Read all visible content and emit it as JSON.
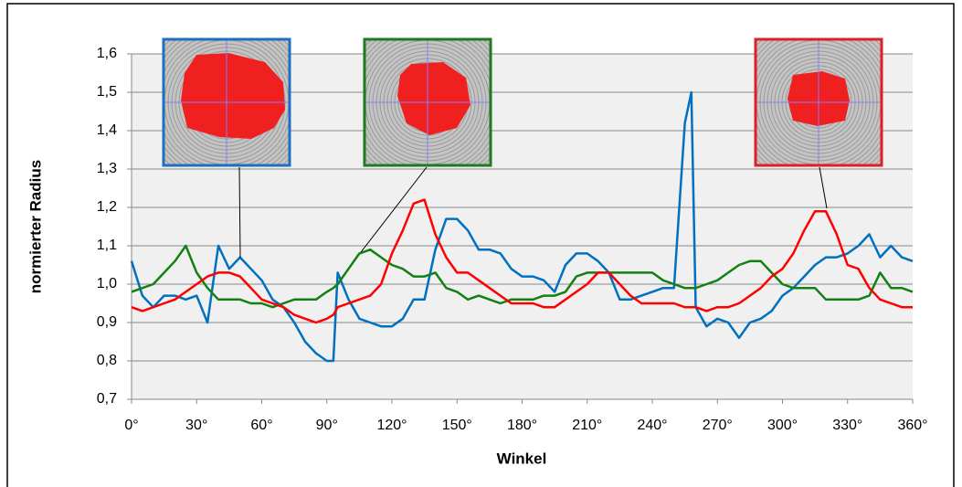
{
  "chart_data": {
    "type": "line",
    "xlabel": "Winkel",
    "ylabel": "normierter Radius",
    "x": [
      0,
      5,
      10,
      15,
      20,
      25,
      30,
      35,
      40,
      45,
      50,
      55,
      60,
      65,
      70,
      75,
      80,
      85,
      90,
      93,
      95,
      100,
      105,
      110,
      115,
      120,
      125,
      130,
      135,
      140,
      145,
      150,
      155,
      160,
      165,
      170,
      175,
      180,
      185,
      190,
      195,
      200,
      205,
      210,
      215,
      220,
      225,
      230,
      235,
      240,
      245,
      250,
      255,
      258,
      260,
      265,
      270,
      275,
      280,
      285,
      290,
      295,
      300,
      305,
      310,
      315,
      320,
      325,
      330,
      335,
      340,
      345,
      350,
      355,
      360
    ],
    "series": [
      {
        "color": "#0070c0",
        "values": [
          1.06,
          0.97,
          0.94,
          0.97,
          0.97,
          0.96,
          0.97,
          0.9,
          1.1,
          1.04,
          1.07,
          1.04,
          1.01,
          0.96,
          0.94,
          0.9,
          0.85,
          0.82,
          0.8,
          0.8,
          1.03,
          0.96,
          0.91,
          0.9,
          0.89,
          0.89,
          0.91,
          0.96,
          0.96,
          1.09,
          1.17,
          1.17,
          1.14,
          1.09,
          1.09,
          1.08,
          1.04,
          1.02,
          1.02,
          1.01,
          0.98,
          1.05,
          1.08,
          1.08,
          1.06,
          1.03,
          0.96,
          0.96,
          0.97,
          0.98,
          0.99,
          0.99,
          1.42,
          1.5,
          0.94,
          0.89,
          0.91,
          0.9,
          0.86,
          0.9,
          0.91,
          0.93,
          0.97,
          0.99,
          1.02,
          1.05,
          1.07,
          1.07,
          1.08,
          1.1,
          1.13,
          1.07,
          1.1,
          1.07,
          1.06
        ]
      },
      {
        "color": "#138013",
        "values": [
          0.98,
          0.99,
          1.0,
          1.03,
          1.06,
          1.1,
          1.03,
          0.99,
          0.96,
          0.96,
          0.96,
          0.95,
          0.95,
          0.94,
          0.95,
          0.96,
          0.96,
          0.96,
          0.98,
          0.99,
          1.0,
          1.04,
          1.08,
          1.09,
          1.07,
          1.05,
          1.04,
          1.02,
          1.02,
          1.03,
          0.99,
          0.98,
          0.96,
          0.97,
          0.96,
          0.95,
          0.96,
          0.96,
          0.96,
          0.97,
          0.97,
          0.98,
          1.02,
          1.03,
          1.03,
          1.03,
          1.03,
          1.03,
          1.03,
          1.03,
          1.01,
          1.0,
          0.99,
          0.99,
          0.99,
          1.0,
          1.01,
          1.03,
          1.05,
          1.06,
          1.06,
          1.03,
          1.0,
          0.99,
          0.99,
          0.99,
          0.96,
          0.96,
          0.96,
          0.96,
          0.97,
          1.03,
          0.99,
          0.99,
          0.98
        ]
      },
      {
        "color": "#ff0000",
        "values": [
          0.94,
          0.93,
          0.94,
          0.95,
          0.96,
          0.98,
          1.0,
          1.02,
          1.03,
          1.03,
          1.02,
          0.99,
          0.96,
          0.95,
          0.94,
          0.92,
          0.91,
          0.9,
          0.91,
          0.92,
          0.94,
          0.95,
          0.96,
          0.97,
          1.0,
          1.08,
          1.14,
          1.21,
          1.22,
          1.13,
          1.07,
          1.03,
          1.03,
          1.01,
          0.99,
          0.97,
          0.95,
          0.95,
          0.95,
          0.94,
          0.94,
          0.96,
          0.98,
          1.0,
          1.03,
          1.03,
          1.0,
          0.97,
          0.95,
          0.95,
          0.95,
          0.95,
          0.94,
          0.94,
          0.94,
          0.93,
          0.94,
          0.94,
          0.95,
          0.97,
          0.99,
          1.02,
          1.04,
          1.08,
          1.14,
          1.19,
          1.19,
          1.13,
          1.05,
          1.04,
          0.99,
          0.96,
          0.95,
          0.94,
          0.94
        ]
      }
    ],
    "xlim": [
      0,
      360
    ],
    "xticks": [
      {
        "value": 0,
        "label": "0°"
      },
      {
        "value": 30,
        "label": "30°"
      },
      {
        "value": 60,
        "label": "60°"
      },
      {
        "value": 90,
        "label": "90°"
      },
      {
        "value": 120,
        "label": "120°"
      },
      {
        "value": 150,
        "label": "150°"
      },
      {
        "value": 180,
        "label": "180°"
      },
      {
        "value": 210,
        "label": "210°"
      },
      {
        "value": 240,
        "label": "240°"
      },
      {
        "value": 270,
        "label": "270°"
      },
      {
        "value": 300,
        "label": "300°"
      },
      {
        "value": 330,
        "label": "330°"
      },
      {
        "value": 360,
        "label": "360°"
      }
    ],
    "ylim": [
      0.7,
      1.6
    ],
    "yticks": [
      {
        "value": 0.7,
        "label": "0,7"
      },
      {
        "value": 0.8,
        "label": "0,8"
      },
      {
        "value": 0.9,
        "label": "0,9"
      },
      {
        "value": 1.0,
        "label": "1,0"
      },
      {
        "value": 1.1,
        "label": "1,1"
      },
      {
        "value": 1.2,
        "label": "1,2"
      },
      {
        "value": 1.3,
        "label": "1,3"
      },
      {
        "value": 1.4,
        "label": "1,4"
      },
      {
        "value": 1.5,
        "label": "1,5"
      },
      {
        "value": 1.6,
        "label": "1,6"
      }
    ],
    "grid": true
  }
}
